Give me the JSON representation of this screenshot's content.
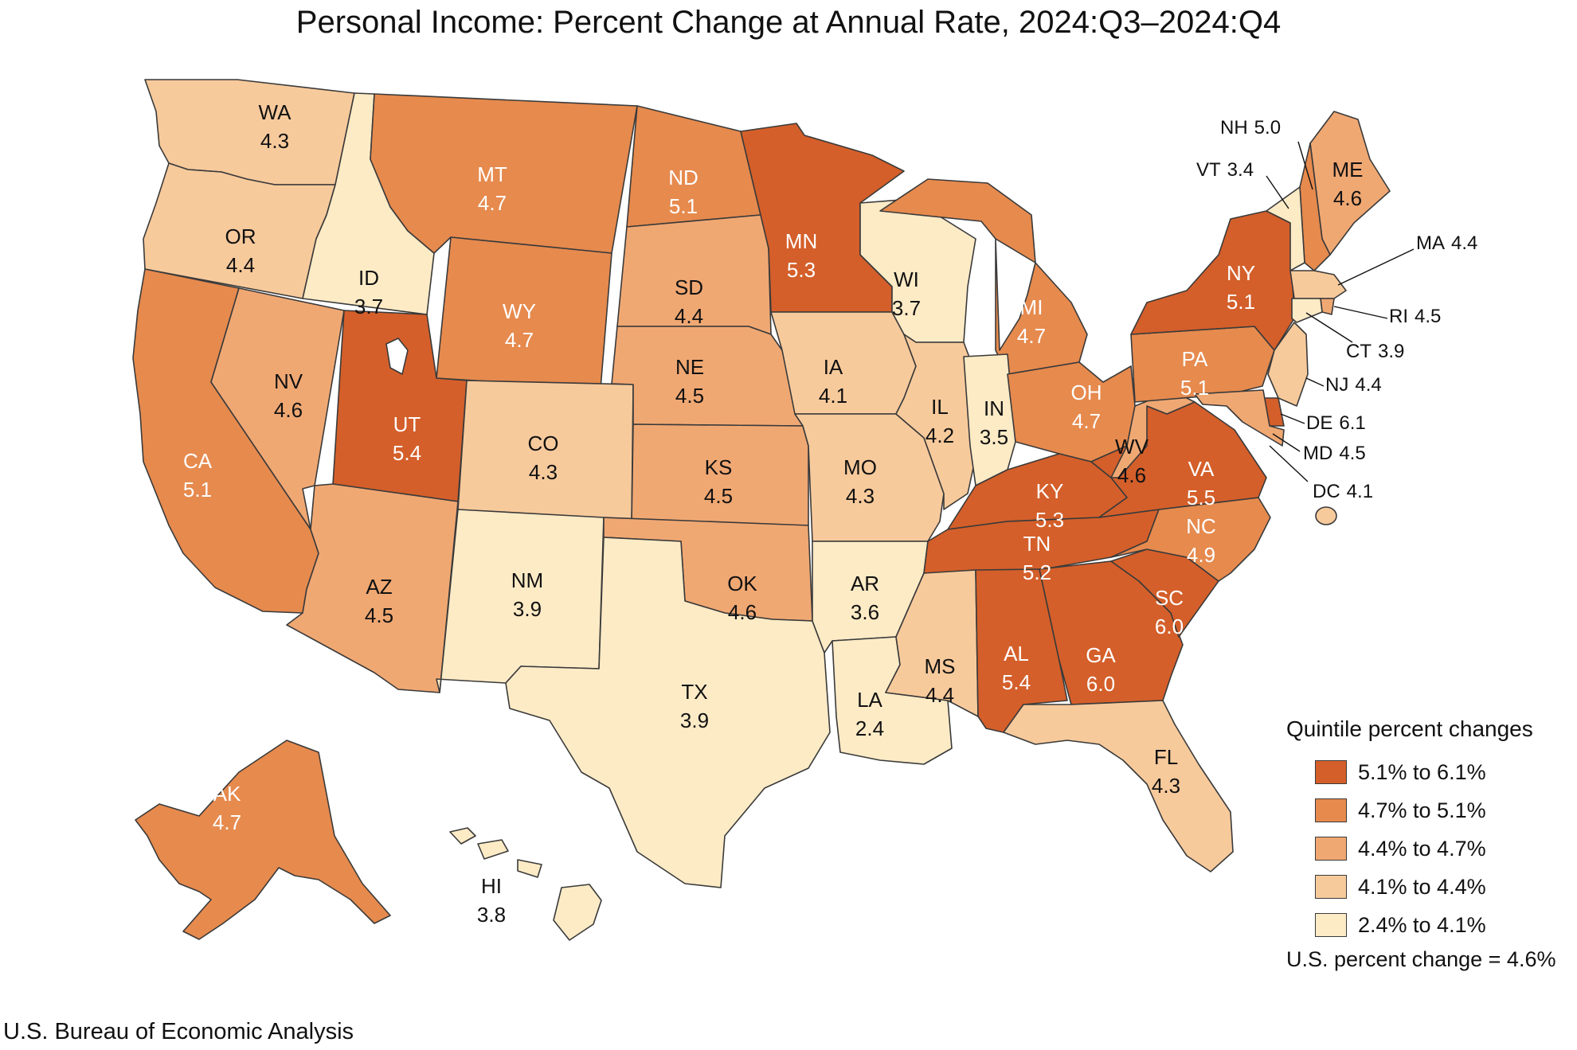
{
  "title": "Personal Income: Percent Change at Annual Rate, 2024:Q3–2024:Q4",
  "source": "U.S. Bureau of Economic Analysis",
  "legend": {
    "title": "Quintile percent changes",
    "items": [
      {
        "label": "5.1% to 6.1%",
        "color": "#d45f2a"
      },
      {
        "label": "4.7% to 5.1%",
        "color": "#e68a4e"
      },
      {
        "label": "4.4% to 4.7%",
        "color": "#f0a873"
      },
      {
        "label": "4.1% to 4.4%",
        "color": "#f7ca9c"
      },
      {
        "label": "2.4% to 4.1%",
        "color": "#fdebc6"
      }
    ],
    "us_change": "U.S. percent change = 4.6%"
  },
  "states": [
    {
      "abbr": "WA",
      "value": "4.3",
      "quintile": 3
    },
    {
      "abbr": "OR",
      "value": "4.4",
      "quintile": 3
    },
    {
      "abbr": "CA",
      "value": "5.1",
      "quintile": 1
    },
    {
      "abbr": "ID",
      "value": "3.7",
      "quintile": 4
    },
    {
      "abbr": "NV",
      "value": "4.6",
      "quintile": 2
    },
    {
      "abbr": "MT",
      "value": "4.7",
      "quintile": 1
    },
    {
      "abbr": "WY",
      "value": "4.7",
      "quintile": 1
    },
    {
      "abbr": "UT",
      "value": "5.4",
      "quintile": 0
    },
    {
      "abbr": "AZ",
      "value": "4.5",
      "quintile": 2
    },
    {
      "abbr": "CO",
      "value": "4.3",
      "quintile": 3
    },
    {
      "abbr": "NM",
      "value": "3.9",
      "quintile": 4
    },
    {
      "abbr": "ND",
      "value": "5.1",
      "quintile": 1
    },
    {
      "abbr": "SD",
      "value": "4.4",
      "quintile": 2
    },
    {
      "abbr": "NE",
      "value": "4.5",
      "quintile": 2
    },
    {
      "abbr": "KS",
      "value": "4.5",
      "quintile": 2
    },
    {
      "abbr": "OK",
      "value": "4.6",
      "quintile": 2
    },
    {
      "abbr": "TX",
      "value": "3.9",
      "quintile": 4
    },
    {
      "abbr": "MN",
      "value": "5.3",
      "quintile": 0
    },
    {
      "abbr": "IA",
      "value": "4.1",
      "quintile": 3
    },
    {
      "abbr": "MO",
      "value": "4.3",
      "quintile": 3
    },
    {
      "abbr": "AR",
      "value": "3.6",
      "quintile": 4
    },
    {
      "abbr": "LA",
      "value": "2.4",
      "quintile": 4
    },
    {
      "abbr": "WI",
      "value": "3.7",
      "quintile": 4
    },
    {
      "abbr": "IL",
      "value": "4.2",
      "quintile": 3
    },
    {
      "abbr": "MI",
      "value": "4.7",
      "quintile": 1
    },
    {
      "abbr": "IN",
      "value": "3.5",
      "quintile": 4
    },
    {
      "abbr": "OH",
      "value": "4.7",
      "quintile": 1
    },
    {
      "abbr": "KY",
      "value": "5.3",
      "quintile": 0
    },
    {
      "abbr": "TN",
      "value": "5.2",
      "quintile": 0
    },
    {
      "abbr": "MS",
      "value": "4.4",
      "quintile": 3
    },
    {
      "abbr": "AL",
      "value": "5.4",
      "quintile": 0
    },
    {
      "abbr": "GA",
      "value": "6.0",
      "quintile": 0
    },
    {
      "abbr": "FL",
      "value": "4.3",
      "quintile": 3
    },
    {
      "abbr": "SC",
      "value": "6.0",
      "quintile": 0
    },
    {
      "abbr": "NC",
      "value": "4.9",
      "quintile": 1
    },
    {
      "abbr": "VA",
      "value": "5.5",
      "quintile": 0
    },
    {
      "abbr": "WV",
      "value": "4.6",
      "quintile": 2
    },
    {
      "abbr": "PA",
      "value": "5.1",
      "quintile": 1
    },
    {
      "abbr": "NY",
      "value": "5.1",
      "quintile": 0
    },
    {
      "abbr": "ME",
      "value": "4.6",
      "quintile": 2
    },
    {
      "abbr": "NH",
      "value": "5.0",
      "quintile": 1
    },
    {
      "abbr": "VT",
      "value": "3.4",
      "quintile": 4
    },
    {
      "abbr": "MA",
      "value": "4.4",
      "quintile": 3
    },
    {
      "abbr": "RI",
      "value": "4.5",
      "quintile": 2
    },
    {
      "abbr": "CT",
      "value": "3.9",
      "quintile": 4
    },
    {
      "abbr": "NJ",
      "value": "4.4",
      "quintile": 3
    },
    {
      "abbr": "DE",
      "value": "6.1",
      "quintile": 0
    },
    {
      "abbr": "MD",
      "value": "4.5",
      "quintile": 2
    },
    {
      "abbr": "DC",
      "value": "4.1",
      "quintile": 3
    },
    {
      "abbr": "AK",
      "value": "4.7",
      "quintile": 1
    },
    {
      "abbr": "HI",
      "value": "3.8",
      "quintile": 4
    }
  ]
}
